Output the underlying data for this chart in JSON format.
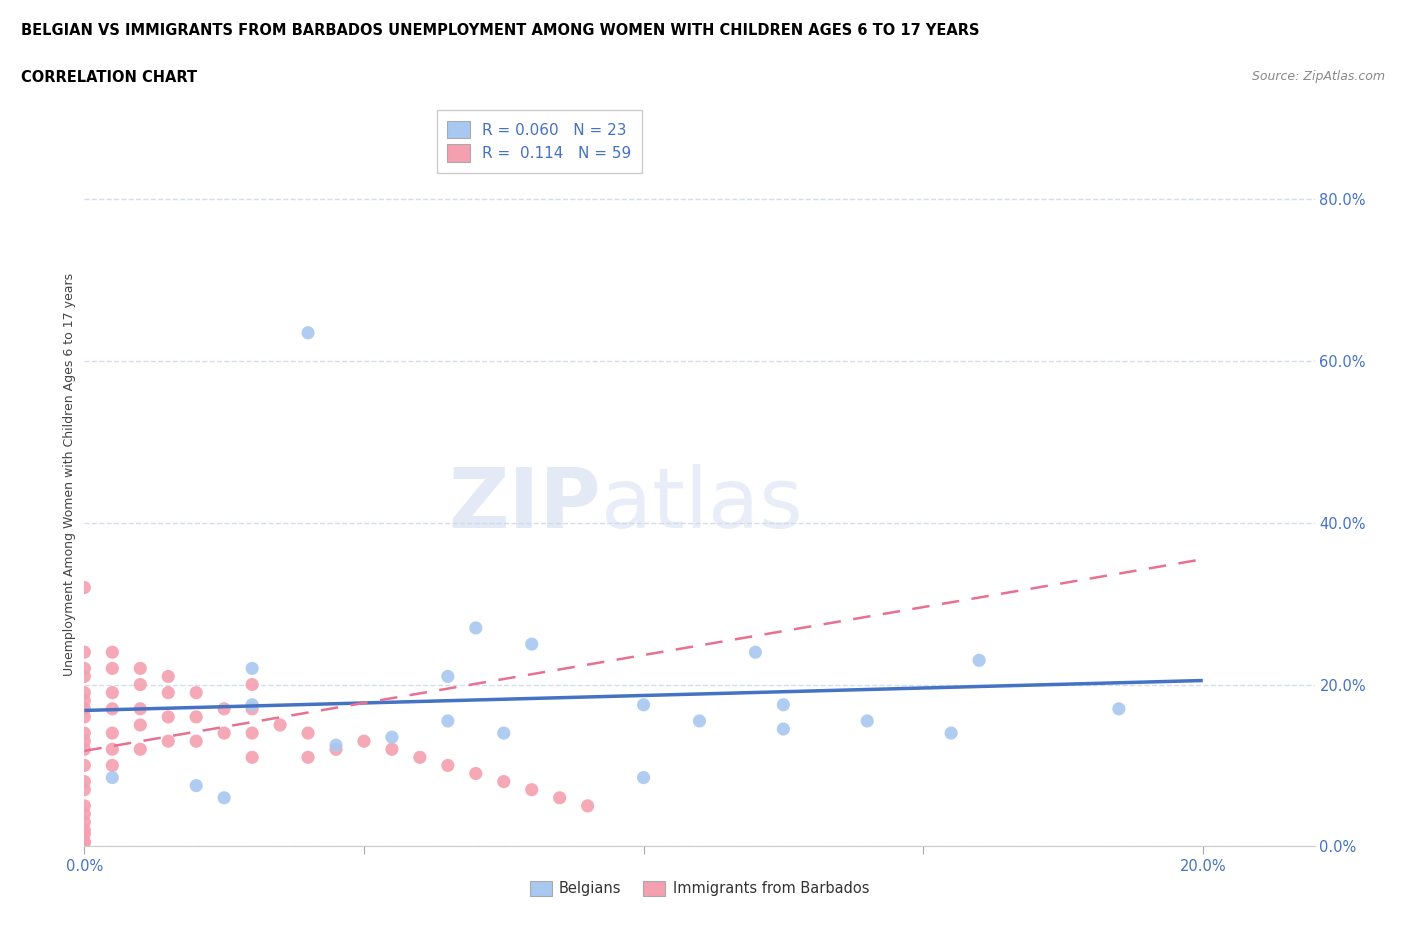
{
  "title_line1": "BELGIAN VS IMMIGRANTS FROM BARBADOS UNEMPLOYMENT AMONG WOMEN WITH CHILDREN AGES 6 TO 17 YEARS",
  "title_line2": "CORRELATION CHART",
  "source": "Source: ZipAtlas.com",
  "ylabel": "Unemployment Among Women with Children Ages 6 to 17 years",
  "belgian_color": "#a8c8f0",
  "immigrant_color": "#f4a0b0",
  "belgian_line_color": "#4472c4",
  "immigrant_line_color": "#e87090",
  "legend_r_belgian": "R = 0.060",
  "legend_n_belgian": "N = 23",
  "legend_r_immigrant": "R =  0.114",
  "legend_n_immigrant": "N = 59",
  "xlim": [
    0.0,
    0.22
  ],
  "ylim": [
    0.0,
    0.92
  ],
  "xticks": [
    0.0,
    0.2
  ],
  "xtick_labels": [
    "0.0%",
    "20.0%"
  ],
  "xticks_minor": [
    0.05,
    0.1,
    0.15
  ],
  "yticks_right": [
    0.0,
    0.2,
    0.4,
    0.6,
    0.8
  ],
  "ytick_labels_right": [
    "0.0%",
    "20.0%",
    "40.0%",
    "60.0%",
    "80.0%"
  ],
  "watermark_zip": "ZIP",
  "watermark_atlas": "atlas",
  "belgians_x": [
    0.04,
    0.08,
    0.03,
    0.03,
    0.065,
    0.1,
    0.11,
    0.125,
    0.14,
    0.07,
    0.12,
    0.16,
    0.185,
    0.065,
    0.075,
    0.055,
    0.045,
    0.125,
    0.155,
    0.1,
    0.005,
    0.02,
    0.025
  ],
  "belgians_y": [
    0.635,
    0.25,
    0.22,
    0.175,
    0.21,
    0.175,
    0.155,
    0.175,
    0.155,
    0.27,
    0.24,
    0.23,
    0.17,
    0.155,
    0.14,
    0.135,
    0.125,
    0.145,
    0.14,
    0.085,
    0.085,
    0.075,
    0.06
  ],
  "immigrants_x": [
    0.0,
    0.0,
    0.0,
    0.0,
    0.0,
    0.0,
    0.0,
    0.0,
    0.0,
    0.0,
    0.0,
    0.0,
    0.0,
    0.0,
    0.0,
    0.0,
    0.0,
    0.0,
    0.0,
    0.0,
    0.005,
    0.005,
    0.005,
    0.005,
    0.005,
    0.005,
    0.005,
    0.01,
    0.01,
    0.01,
    0.01,
    0.01,
    0.015,
    0.015,
    0.015,
    0.015,
    0.02,
    0.02,
    0.02,
    0.025,
    0.025,
    0.03,
    0.03,
    0.03,
    0.03,
    0.035,
    0.04,
    0.04,
    0.045,
    0.05,
    0.055,
    0.06,
    0.065,
    0.07,
    0.075,
    0.08,
    0.085,
    0.09,
    0.0
  ],
  "immigrants_y": [
    0.32,
    0.24,
    0.22,
    0.21,
    0.19,
    0.18,
    0.17,
    0.16,
    0.14,
    0.13,
    0.12,
    0.1,
    0.08,
    0.07,
    0.05,
    0.04,
    0.03,
    0.02,
    0.015,
    0.005,
    0.24,
    0.22,
    0.19,
    0.17,
    0.14,
    0.12,
    0.1,
    0.22,
    0.2,
    0.17,
    0.15,
    0.12,
    0.21,
    0.19,
    0.16,
    0.13,
    0.19,
    0.16,
    0.13,
    0.17,
    0.14,
    0.2,
    0.17,
    0.14,
    0.11,
    0.15,
    0.14,
    0.11,
    0.12,
    0.13,
    0.12,
    0.11,
    0.1,
    0.09,
    0.08,
    0.07,
    0.06,
    0.05,
    0.005
  ],
  "belgian_trend_x": [
    0.0,
    0.2
  ],
  "belgian_trend_y": [
    0.168,
    0.205
  ],
  "immigrant_trend_x": [
    0.0,
    0.2
  ],
  "immigrant_trend_y": [
    0.118,
    0.355
  ],
  "bg_color": "#ffffff",
  "grid_color": "#c8d4e8",
  "title_color": "#000000",
  "source_color": "#888888",
  "axis_label_color": "#444444",
  "tick_color": "#4472c4"
}
